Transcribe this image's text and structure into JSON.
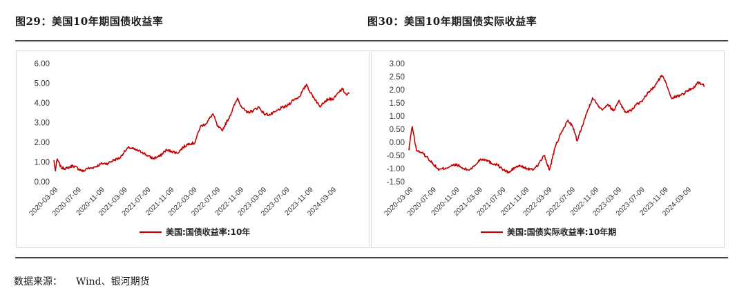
{
  "page": {
    "left_title": "图29：美国10年期国债收益率",
    "right_title": "图30：美国10年期国债实际收益率",
    "source_label": "数据来源：",
    "source_value": "Wind、银河期货",
    "line_color": "#c00000"
  },
  "chart_data": [
    {
      "type": "line",
      "title": "图29：美国10年期国债收益率",
      "legend": "美国:国债收益率:10年",
      "legend_position": "bottom",
      "grid": false,
      "ylim": [
        0,
        6
      ],
      "yticks": [
        "6.00",
        "5.00",
        "4.00",
        "3.00",
        "2.00",
        "1.00",
        "0.00"
      ],
      "xticks": [
        "2020-03-09",
        "2020-07-09",
        "2020-11-09",
        "2021-03-09",
        "2021-07-09",
        "2021-11-09",
        "2022-03-09",
        "2022-07-09",
        "2022-11-09",
        "2023-03-09",
        "2023-07-09",
        "2023-11-09",
        "2024-03-09"
      ],
      "xrange": [
        "2020-03-01",
        "2024-05-31"
      ],
      "series": [
        {
          "name": "美国:国债收益率:10年",
          "x": [
            "2020-03-01",
            "2020-03-09",
            "2020-03-18",
            "2020-04-09",
            "2020-05-09",
            "2020-06-09",
            "2020-07-09",
            "2020-08-04",
            "2020-08-20",
            "2020-09-09",
            "2020-10-09",
            "2020-11-09",
            "2020-12-09",
            "2021-01-09",
            "2021-02-09",
            "2021-03-09",
            "2021-03-31",
            "2021-05-09",
            "2021-06-09",
            "2021-07-09",
            "2021-08-04",
            "2021-09-09",
            "2021-10-09",
            "2021-11-09",
            "2021-12-09",
            "2022-01-09",
            "2022-02-09",
            "2022-03-09",
            "2022-04-09",
            "2022-05-09",
            "2022-06-14",
            "2022-07-09",
            "2022-08-01",
            "2022-09-09",
            "2022-10-21",
            "2022-11-09",
            "2022-12-09",
            "2023-01-09",
            "2023-02-09",
            "2023-03-09",
            "2023-04-09",
            "2023-05-09",
            "2023-06-09",
            "2023-07-09",
            "2023-08-09",
            "2023-09-09",
            "2023-10-19",
            "2023-11-09",
            "2023-12-09",
            "2023-12-27",
            "2024-01-09",
            "2024-02-09",
            "2024-03-09",
            "2024-04-09",
            "2024-04-25",
            "2024-05-15",
            "2024-05-31"
          ],
          "y": [
            1.1,
            0.55,
            1.15,
            0.7,
            0.68,
            0.82,
            0.65,
            0.52,
            0.68,
            0.68,
            0.78,
            0.92,
            0.93,
            1.1,
            1.2,
            1.55,
            1.74,
            1.6,
            1.5,
            1.3,
            1.18,
            1.3,
            1.6,
            1.55,
            1.45,
            1.75,
            1.95,
            1.95,
            2.8,
            2.95,
            3.45,
            2.8,
            2.6,
            3.3,
            4.25,
            3.85,
            3.5,
            3.6,
            3.8,
            3.45,
            3.4,
            3.55,
            3.75,
            3.85,
            4.15,
            4.3,
            4.95,
            4.5,
            4.1,
            3.8,
            4.0,
            4.2,
            4.2,
            4.6,
            4.7,
            4.4,
            4.5
          ]
        }
      ]
    },
    {
      "type": "line",
      "title": "图30：美国10年期国债实际收益率",
      "legend": "美国:国债实际收益率:10年期",
      "legend_position": "bottom",
      "grid": false,
      "ylim": [
        -1.5,
        3.0
      ],
      "yticks": [
        "3.00",
        "2.50",
        "2.00",
        "1.50",
        "1.00",
        "0.50",
        "0.00",
        "-0.50",
        "-1.00",
        "-1.50"
      ],
      "xticks": [
        "2020-03-09",
        "2020-07-09",
        "2020-11-09",
        "2021-03-09",
        "2021-07-09",
        "2021-11-09",
        "2022-03-09",
        "2022-07-09",
        "2022-11-09",
        "2023-03-09",
        "2023-07-09",
        "2023-11-09",
        "2024-03-09"
      ],
      "xrange": [
        "2020-03-01",
        "2024-05-31"
      ],
      "series": [
        {
          "name": "美国:国债实际收益率:10年期",
          "x": [
            "2020-03-01",
            "2020-03-09",
            "2020-03-19",
            "2020-04-09",
            "2020-05-09",
            "2020-06-09",
            "2020-07-09",
            "2020-08-06",
            "2020-09-09",
            "2020-10-09",
            "2020-11-09",
            "2020-12-09",
            "2021-01-09",
            "2021-02-09",
            "2021-03-09",
            "2021-04-09",
            "2021-05-09",
            "2021-06-09",
            "2021-07-09",
            "2021-08-09",
            "2021-09-09",
            "2021-10-09",
            "2021-11-09",
            "2021-12-09",
            "2022-01-09",
            "2022-02-09",
            "2022-03-09",
            "2022-04-09",
            "2022-05-09",
            "2022-06-14",
            "2022-07-09",
            "2022-08-01",
            "2022-09-09",
            "2022-10-21",
            "2022-11-09",
            "2022-12-09",
            "2023-01-09",
            "2023-02-09",
            "2023-03-09",
            "2023-04-09",
            "2023-05-09",
            "2023-06-09",
            "2023-07-09",
            "2023-08-09",
            "2023-09-09",
            "2023-10-19",
            "2023-11-09",
            "2023-12-09",
            "2024-01-09",
            "2024-02-09",
            "2024-03-09",
            "2024-04-09",
            "2024-04-25",
            "2024-05-31"
          ],
          "y": [
            -0.3,
            0.2,
            0.6,
            -0.3,
            -0.4,
            -0.6,
            -0.85,
            -1.05,
            -0.98,
            -0.9,
            -0.85,
            -1.0,
            -1.05,
            -0.9,
            -0.65,
            -0.65,
            -0.8,
            -0.85,
            -1.05,
            -1.15,
            -0.95,
            -0.9,
            -1.0,
            -1.05,
            -0.85,
            -0.5,
            -1.05,
            -0.15,
            0.35,
            0.85,
            0.6,
            0.05,
            0.9,
            1.7,
            1.5,
            1.25,
            1.45,
            1.2,
            1.6,
            1.15,
            1.2,
            1.45,
            1.55,
            1.9,
            2.1,
            2.55,
            2.3,
            1.7,
            1.75,
            1.85,
            2.0,
            2.1,
            2.3,
            2.15
          ]
        }
      ]
    }
  ]
}
